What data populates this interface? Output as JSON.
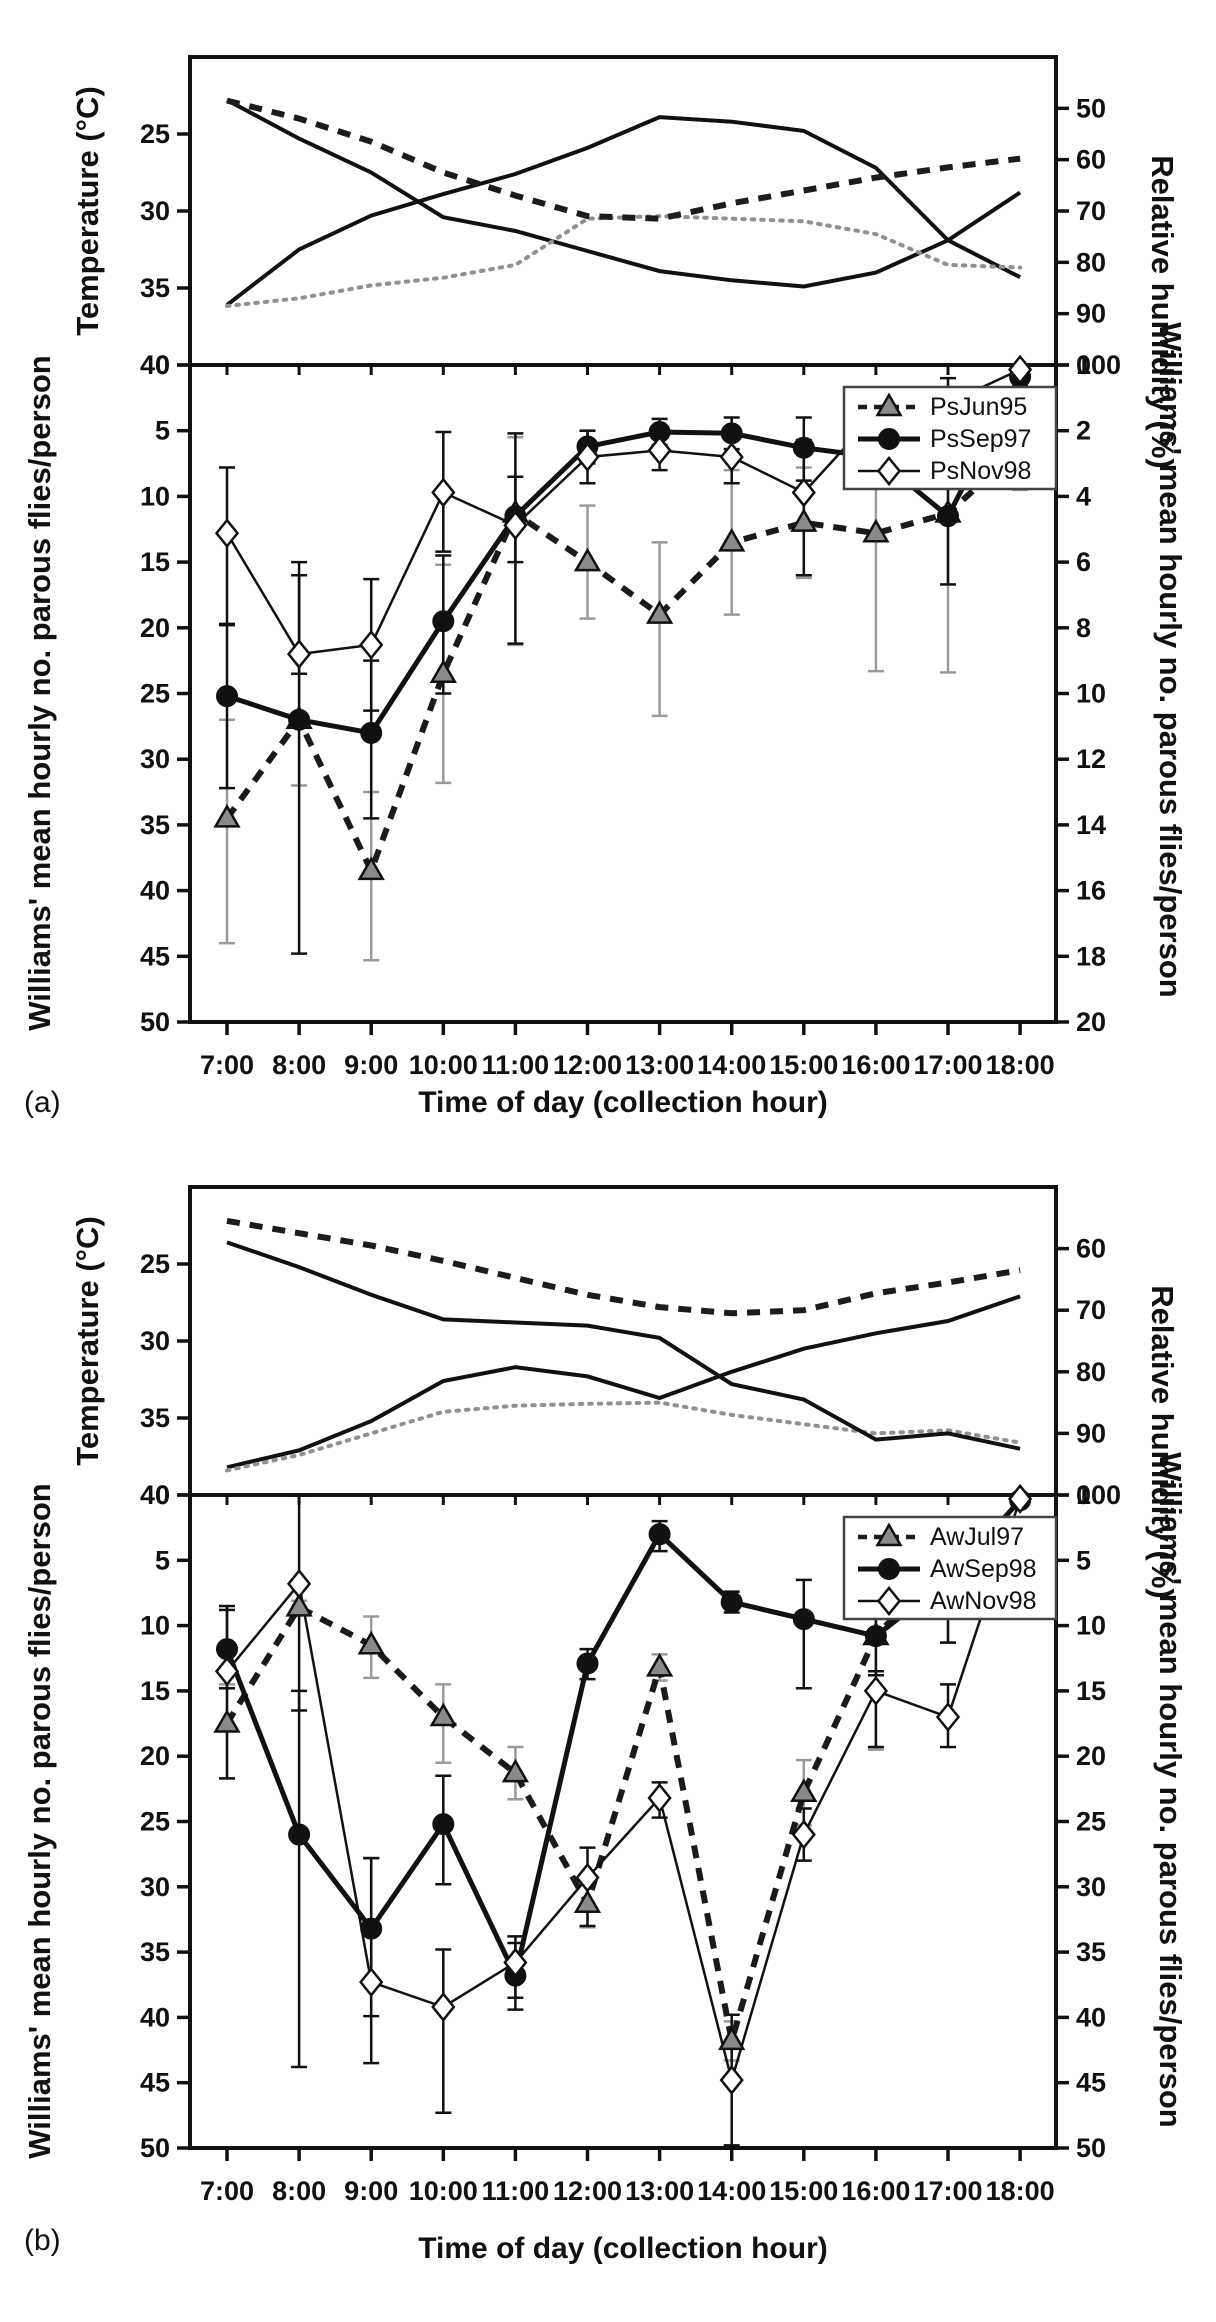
{
  "figure": {
    "panel_a_letter": "(a)",
    "panel_b_letter": "(b)"
  },
  "chart_data": [
    {
      "panel": "(a)",
      "top": {
        "type": "line",
        "x_categories": [
          "7:00",
          "8:00",
          "9:00",
          "10:00",
          "11:00",
          "12:00",
          "13:00",
          "14:00",
          "15:00",
          "16:00",
          "17:00",
          "18:00"
        ],
        "left_axis": {
          "label": "Temperature (°C)",
          "range": [
            20,
            40
          ],
          "ticks": [
            40,
            35,
            30,
            25
          ]
        },
        "right_axis": {
          "label": "Relative humidity (%)",
          "range": [
            40,
            100
          ],
          "ticks": [
            100,
            90,
            80,
            70,
            60,
            50
          ]
        },
        "grid": false,
        "series": [
          {
            "name": "temperature-solid-v",
            "axis": "left",
            "style": "solid",
            "color": "#111111",
            "values": [
              36.1,
              32.5,
              30.3,
              28.9,
              27.6,
              25.9,
              23.9,
              24.2,
              24.8,
              27.2,
              31.9,
              34.3
            ]
          },
          {
            "name": "temperature-solid-peak",
            "axis": "left",
            "style": "solid",
            "color": "#111111",
            "values": [
              22.8,
              25.3,
              27.5,
              30.4,
              31.3,
              32.6,
              33.9,
              34.5,
              34.9,
              34.0,
              31.9,
              28.8
            ]
          },
          {
            "name": "humidity-grey-dotted",
            "axis": "right",
            "style": "dotted",
            "color": "#909090",
            "values": [
              88.5,
              87,
              84.5,
              83,
              80.5,
              71.5,
              71,
              71.5,
              72,
              74.5,
              80.5,
              81
            ]
          },
          {
            "name": "humidity-dark-dashed",
            "axis": "right",
            "style": "dashed",
            "color": "#1c1c1c",
            "values": [
              48.5,
              52,
              56.5,
              62.5,
              67,
              71,
              71.5,
              68.5,
              66,
              63.5,
              61.5,
              59.8
            ]
          }
        ]
      },
      "bottom": {
        "type": "line-errorbar",
        "x_categories": [
          "7:00",
          "8:00",
          "9:00",
          "10:00",
          "11:00",
          "12:00",
          "13:00",
          "14:00",
          "15:00",
          "16:00",
          "17:00",
          "18:00"
        ],
        "xlabel": "Time of day (collection hour)",
        "left_axis": {
          "label": "Williams' mean hourly no. parous flies/person",
          "range": [
            0,
            50
          ],
          "ticks": [
            50,
            45,
            40,
            35,
            30,
            25,
            20,
            15,
            10,
            5,
            0
          ]
        },
        "right_axis": {
          "label": "Williams' mean hourly no. parous flies/person",
          "range": [
            0,
            20
          ],
          "ticks": [
            20,
            18,
            16,
            14,
            12,
            10,
            8,
            6,
            4,
            2,
            0
          ]
        },
        "legend_position": "top-right",
        "series": [
          {
            "name": "PsJun95",
            "marker": "triangle",
            "marker_fill": "#8a8a8a",
            "line": "dashed",
            "color": "#1a1a1a",
            "err_color": "#9a9a9a",
            "values": [
              34.5,
              27,
              38.5,
              23.5,
              11.3,
              15,
              19,
              13.5,
              12,
              12.8,
              11.3,
              6.3
            ],
            "err_up": [
              9.5,
              5,
              6.8,
              8.3,
              10,
              4.3,
              7.7,
              5.5,
              4.2,
              10.5,
              12.1,
              3.2
            ],
            "err_dn": [
              7.5,
              5,
              6,
              8.3,
              5.8,
              4.3,
              5.5,
              5.5,
              4.2,
              5.8,
              5.3,
              3.2
            ]
          },
          {
            "name": "PsSep97",
            "marker": "circle",
            "marker_fill": "#111111",
            "line": "solid-thick",
            "color": "#111111",
            "err_color": "#111111",
            "values": [
              25.2,
              27,
              28,
              19.5,
              11.5,
              6.2,
              5.1,
              5.2,
              6.3,
              7,
              11.5,
              0.9
            ],
            "err_up": [
              7,
              17.8,
              6.5,
              5.5,
              3.5,
              1.3,
              1,
              1.2,
              2.5,
              2.3,
              5.2,
              0.7
            ],
            "err_dn": [
              5.5,
              11,
              5.5,
              5,
              3,
              1.2,
              1,
              1.2,
              2.3,
              2,
              4.5,
              0.6
            ]
          },
          {
            "name": "PsNov98",
            "marker": "diamond",
            "marker_fill": "#ffffff",
            "line": "solid-thin",
            "color": "#111111",
            "err_color": "#111111",
            "values": [
              12.8,
              22,
              21.3,
              9.7,
              12.2,
              7,
              6.5,
              7,
              9.7,
              3.7,
              2.9,
              0.35
            ],
            "err_up": [
              7,
              1.5,
              5,
              4.5,
              9,
              2,
              1.5,
              2,
              6.3,
              2,
              3.8,
              0.5
            ],
            "err_dn": [
              5,
              7,
              5,
              4.6,
              7,
              2,
              1.5,
              2,
              4,
              2,
              1.9,
              0.3
            ]
          }
        ]
      }
    },
    {
      "panel": "(b)",
      "top": {
        "type": "line",
        "x_categories": [
          "7:00",
          "8:00",
          "9:00",
          "10:00",
          "11:00",
          "12:00",
          "13:00",
          "14:00",
          "15:00",
          "16:00",
          "17:00",
          "18:00"
        ],
        "left_axis": {
          "label": "Temperature (°C)",
          "range": [
            20,
            40
          ],
          "ticks": [
            40,
            35,
            30,
            25
          ]
        },
        "right_axis": {
          "label": "Relative humidity (%)",
          "range": [
            50,
            100
          ],
          "ticks": [
            100,
            90,
            80,
            70,
            60
          ]
        },
        "grid": false,
        "series": [
          {
            "name": "temperature-solid-declining",
            "axis": "left",
            "style": "solid",
            "color": "#111111",
            "values": [
              38.2,
              37.1,
              35.2,
              32.6,
              31.7,
              32.3,
              33.7,
              32.0,
              30.5,
              29.5,
              28.7,
              27.1
            ]
          },
          {
            "name": "temperature-dark-dashed",
            "axis": "left",
            "style": "dashed",
            "color": "#1c1c1c",
            "values": [
              22.2,
              23.0,
              23.8,
              24.8,
              25.9,
              27.0,
              27.8,
              28.2,
              28.0,
              26.9,
              26.2,
              25.4
            ]
          },
          {
            "name": "humidity-grey-dotted",
            "axis": "right",
            "style": "dotted",
            "color": "#909090",
            "values": [
              96,
              93.5,
              90,
              86.5,
              85.5,
              85.2,
              85,
              87,
              88.5,
              90,
              89.5,
              91.5
            ]
          },
          {
            "name": "humidity-solid-rising",
            "axis": "right",
            "style": "solid",
            "color": "#111111",
            "values": [
              59,
              63,
              67.5,
              71.5,
              72,
              72.5,
              74.5,
              82,
              84.5,
              91,
              90,
              92.5
            ]
          }
        ]
      },
      "bottom": {
        "type": "line-errorbar",
        "x_categories": [
          "7:00",
          "8:00",
          "9:00",
          "10:00",
          "11:00",
          "12:00",
          "13:00",
          "14:00",
          "15:00",
          "16:00",
          "17:00",
          "18:00"
        ],
        "xlabel": "Time of day (collection hour)",
        "left_axis": {
          "label": "Williams' mean hourly no. parous flies/person",
          "range": [
            0,
            50
          ],
          "ticks": [
            50,
            45,
            40,
            35,
            30,
            25,
            20,
            15,
            10,
            5,
            0
          ]
        },
        "right_axis": {
          "label": "Williams' mean hourly no. parous flies/person",
          "range": [
            0,
            50
          ],
          "ticks": [
            50,
            45,
            40,
            35,
            30,
            25,
            20,
            15,
            10,
            5,
            0
          ]
        },
        "legend_position": "top-right",
        "series": [
          {
            "name": "AwJul97",
            "marker": "triangle",
            "marker_fill": "#8a8a8a",
            "line": "dashed",
            "color": "#1a1a1a",
            "err_color": "#9a9a9a",
            "values": [
              17.5,
              8.6,
              11.5,
              17,
              21.3,
              31.3,
              13.2,
              41.8,
              22.8,
              10.8,
              5,
              2.8
            ],
            "err_up": [
              4.2,
              0.5,
              2.5,
              3.5,
              2,
              1.8,
              1,
              1.5,
              2.5,
              8.7,
              6.3,
              1.2
            ],
            "err_dn": [
              3,
              0.5,
              2.2,
              2.5,
              2,
              1.8,
              1,
              1.5,
              2.5,
              2.8,
              2.3,
              1
            ]
          },
          {
            "name": "AwSep98",
            "marker": "circle",
            "marker_fill": "#111111",
            "line": "solid-thick",
            "color": "#111111",
            "err_color": "#111111",
            "values": [
              11.8,
              26,
              33.2,
              25.2,
              36.8,
              12.9,
              3,
              8.2,
              9.5,
              10.8,
              6.5,
              0.4
            ],
            "err_up": [
              3,
              17.8,
              6.7,
              4.6,
              2.6,
              1.2,
              1.3,
              0.8,
              5.3,
              3,
              4.8,
              0.4
            ],
            "err_dn": [
              3,
              11,
              5.4,
              3.7,
              2.5,
              1.1,
              1,
              0.8,
              3,
              2.8,
              2,
              0.4
            ]
          },
          {
            "name": "AwNov98",
            "marker": "diamond",
            "marker_fill": "#ffffff",
            "line": "solid-thin",
            "color": "#111111",
            "err_color": "#111111",
            "values": [
              13.5,
              6.8,
              37.3,
              39.2,
              35.8,
              29.3,
              23.2,
              44.8,
              26,
              15,
              17,
              0.3
            ],
            "err_up": [
              8.2,
              9.7,
              6.2,
              8.1,
              2.7,
              3.7,
              1.5,
              5,
              2,
              4.3,
              2.3,
              0.4
            ],
            "err_dn": [
              5,
              6.8,
              9.5,
              4.4,
              2,
              2.3,
              1.2,
              5,
              2,
              1.5,
              2.5,
              0.3
            ]
          }
        ]
      }
    }
  ],
  "colors": {
    "ink": "#111111",
    "triangle_fill": "#8a8a8a",
    "grey_dotted": "#909090",
    "grey_error": "#9a9a9a",
    "background": "#ffffff"
  }
}
